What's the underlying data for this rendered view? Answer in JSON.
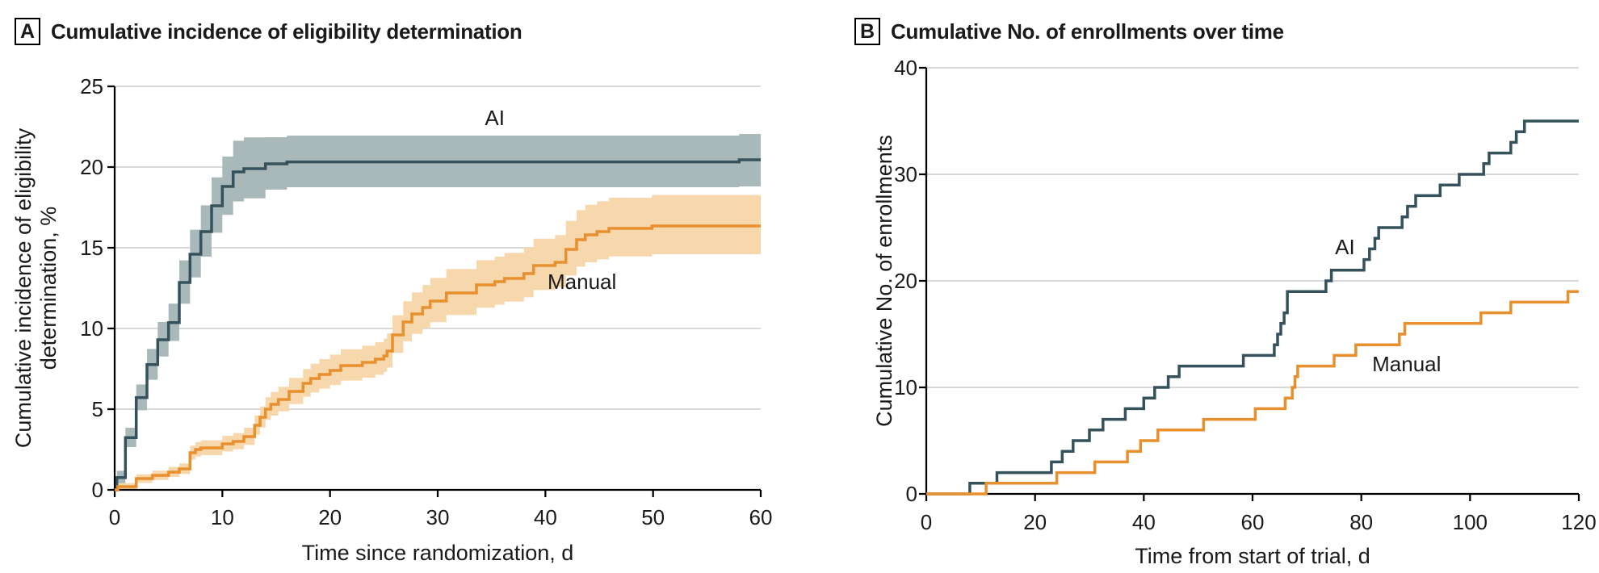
{
  "chart_data": [
    {
      "type": "line",
      "subtype": "step-cumulative-incidence-with-ci-bands",
      "panel_label": "A",
      "title": "Cumulative incidence of eligibility determination",
      "xlabel": "Time since randomization, d",
      "ylabel_lines": [
        "Cumulative incidence of eligibility",
        "determination, %"
      ],
      "xlim": [
        0,
        60
      ],
      "ylim": [
        0,
        25
      ],
      "xticks": [
        0,
        10,
        20,
        30,
        40,
        50,
        60
      ],
      "yticks": [
        0,
        5,
        10,
        15,
        20,
        25
      ],
      "grid": "horizontal",
      "colors": {
        "grid": "#d9d9d9",
        "axis": "#000000",
        "text": "#1a1a1a"
      },
      "series": [
        {
          "name": "AI",
          "color": "#35525c",
          "band_color": "#a9b9ba",
          "label": {
            "text": "AI",
            "x": 35.3,
            "y": 22.6,
            "anchor": "middle"
          },
          "x": [
            0,
            0.2,
            1,
            2,
            3,
            4,
            5,
            6,
            7,
            8,
            9,
            10,
            11,
            12,
            14,
            16,
            58,
            60
          ],
          "y": [
            0,
            0.76,
            3.24,
            5.72,
            7.76,
            9.3,
            10.36,
            12.85,
            14.6,
            16.0,
            17.6,
            18.8,
            19.7,
            19.9,
            20.2,
            20.32,
            20.45,
            20.45
          ],
          "lo": [
            0,
            0.37,
            2.65,
            4.93,
            6.82,
            8.26,
            9.23,
            11.53,
            13.16,
            14.45,
            15.93,
            17.04,
            17.87,
            18.06,
            18.6,
            18.75,
            18.8,
            18.8
          ],
          "hi": [
            0,
            1.18,
            3.85,
            6.53,
            8.73,
            10.4,
            11.54,
            14.22,
            16.12,
            17.63,
            19.36,
            20.65,
            21.63,
            21.84,
            21.85,
            21.95,
            22.05,
            22.05
          ]
        },
        {
          "name": "Manual",
          "color": "#e88f2e",
          "band_color": "#f7d7ac",
          "label": {
            "text": "Manual",
            "x": 43.4,
            "y": 12.45,
            "anchor": "middle"
          },
          "x": [
            0,
            0.3,
            2,
            3.5,
            5,
            6,
            7,
            7.5,
            8,
            10,
            11,
            12,
            13,
            13.5,
            14,
            14.5,
            15.2,
            16.2,
            17.5,
            18.2,
            19,
            20,
            21,
            23,
            24.2,
            25,
            25.3,
            25.8,
            26.8,
            27.6,
            28.6,
            29.3,
            30.8,
            33.6,
            35.3,
            36.2,
            38,
            38.9,
            40.9,
            41.9,
            42.9,
            43.7,
            44.8,
            45.9,
            49.9,
            60
          ],
          "y": [
            0,
            0.2,
            0.7,
            0.9,
            1.1,
            1.3,
            2.3,
            2.5,
            2.6,
            2.85,
            3.0,
            3.3,
            4.0,
            4.5,
            5.0,
            5.3,
            5.6,
            6.1,
            6.6,
            6.9,
            7.15,
            7.4,
            7.7,
            7.9,
            8.1,
            8.3,
            8.6,
            9.6,
            10.4,
            10.9,
            11.3,
            11.7,
            12.2,
            12.7,
            12.9,
            13.1,
            13.4,
            13.9,
            14.1,
            14.9,
            15.5,
            15.8,
            16.0,
            16.2,
            16.35,
            16.35
          ],
          "lo": [
            0,
            0.02,
            0.43,
            0.61,
            0.8,
            0.98,
            1.88,
            2.06,
            2.15,
            2.38,
            2.52,
            2.79,
            3.42,
            3.87,
            4.33,
            4.6,
            4.87,
            5.32,
            5.77,
            6.04,
            6.27,
            6.5,
            6.77,
            6.95,
            7.13,
            7.31,
            7.58,
            8.49,
            9.21,
            9.66,
            10.03,
            10.39,
            10.84,
            11.29,
            11.47,
            11.66,
            11.93,
            12.38,
            12.56,
            13.28,
            13.83,
            14.1,
            14.28,
            14.46,
            14.6,
            14.6
          ],
          "hi": [
            0,
            0.42,
            0.97,
            1.19,
            1.42,
            1.64,
            2.74,
            2.96,
            3.07,
            3.35,
            3.52,
            3.85,
            4.62,
            5.17,
            5.73,
            6.06,
            6.39,
            6.94,
            7.49,
            7.82,
            8.1,
            8.38,
            8.71,
            8.93,
            9.15,
            9.37,
            9.7,
            10.81,
            11.69,
            12.24,
            12.69,
            13.13,
            13.68,
            14.23,
            14.45,
            14.68,
            15.01,
            15.56,
            15.78,
            16.66,
            17.33,
            17.66,
            17.88,
            18.1,
            18.27,
            18.27
          ]
        }
      ]
    },
    {
      "type": "line",
      "subtype": "step-cumulative-count",
      "panel_label": "B",
      "title": "Cumulative No. of enrollments over time",
      "xlabel": "Time from start of trial, d",
      "ylabel_lines": [
        "Cumulative No. of enrollments"
      ],
      "xlim": [
        0,
        120
      ],
      "ylim": [
        0,
        40
      ],
      "xticks": [
        0,
        20,
        40,
        60,
        80,
        100,
        120
      ],
      "yticks": [
        0,
        10,
        20,
        30,
        40
      ],
      "grid": "horizontal",
      "colors": {
        "grid": "#d9d9d9",
        "axis": "#000000",
        "text": "#1a1a1a"
      },
      "series": [
        {
          "name": "AI",
          "color": "#35525c",
          "label": {
            "text": "AI",
            "x": 77,
            "y": 22.5,
            "anchor": "middle"
          },
          "x": [
            0,
            8,
            13,
            23,
            25,
            27,
            30,
            32.5,
            36.6,
            40,
            42,
            44.5,
            46.5,
            58.3,
            64,
            64.6,
            65.2,
            65.8,
            66.4,
            73.5,
            74.5,
            80.5,
            81.5,
            82.5,
            83.2,
            87.5,
            88.5,
            90,
            94.5,
            98,
            102.5,
            103.5,
            107.5,
            108.5,
            110,
            120
          ],
          "y": [
            0,
            1,
            2,
            3,
            4,
            5,
            6,
            7,
            8,
            9,
            10,
            11,
            12,
            13,
            14,
            15,
            16,
            17,
            19,
            20,
            21,
            22,
            23,
            24,
            25,
            26,
            27,
            28,
            29,
            30,
            31,
            32,
            33,
            34,
            35,
            35
          ]
        },
        {
          "name": "Manual",
          "color": "#e88f2e",
          "label": {
            "text": "Manual",
            "x": 82,
            "y": 11.5,
            "anchor": "start"
          },
          "x": [
            0,
            11,
            24,
            31,
            37,
            39.4,
            42.6,
            51,
            60.5,
            66,
            67.3,
            67.8,
            68.3,
            75,
            79,
            87,
            88,
            102,
            107.5,
            118,
            120
          ],
          "y": [
            0,
            1,
            2,
            3,
            4,
            5,
            6,
            7,
            8,
            9,
            10,
            11,
            12,
            13,
            14,
            15,
            16,
            17,
            18,
            19,
            19
          ]
        }
      ]
    }
  ]
}
